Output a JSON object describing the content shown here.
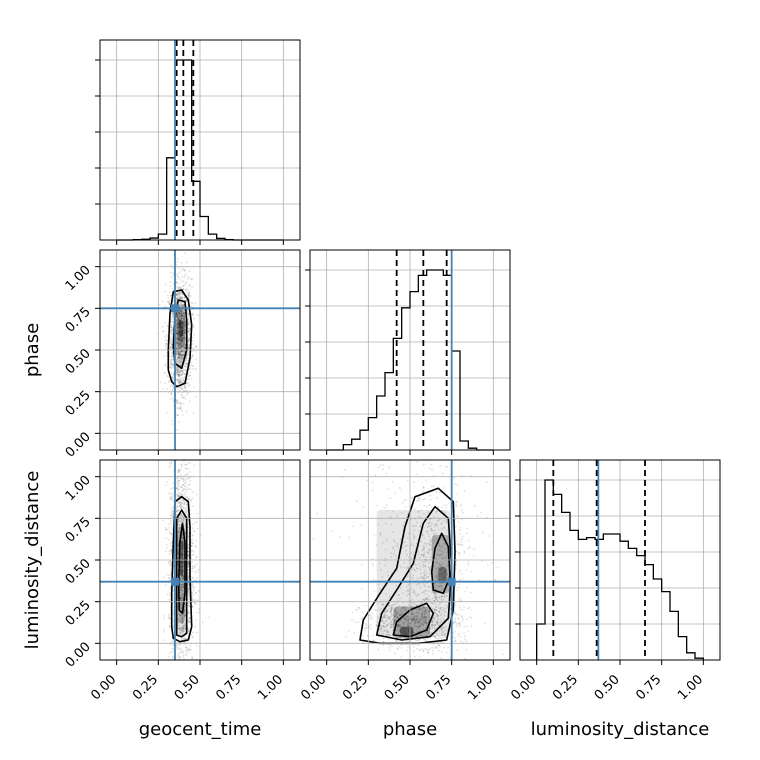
{
  "chart_data": {
    "type": "corner",
    "parameters": [
      "geocent_time",
      "phase",
      "luminosity_distance"
    ],
    "truths": {
      "geocent_time": 0.35,
      "phase": 0.75,
      "luminosity_distance": 0.37
    },
    "axis_range": [
      -0.1,
      1.1
    ],
    "tick_values": [
      0.0,
      0.25,
      0.5,
      0.75,
      1.0
    ],
    "tick_labels": [
      "0.00",
      "0.25",
      "0.50",
      "0.75",
      "1.00"
    ],
    "grid": true,
    "truth_color": "#4682b4",
    "marginals": [
      {
        "parameter": "geocent_time",
        "bin_edges": [
          0.0,
          0.05,
          0.1,
          0.15,
          0.2,
          0.25,
          0.3,
          0.35,
          0.4,
          0.45,
          0.5,
          0.55,
          0.6,
          0.65,
          0.7,
          0.75,
          0.8,
          0.85,
          0.9,
          0.95,
          1.0
        ],
        "density": [
          0.0,
          0.0,
          0.002,
          0.004,
          0.01,
          0.03,
          0.42,
          0.92,
          0.92,
          0.3,
          0.12,
          0.03,
          0.008,
          0.002,
          0.0,
          0.0,
          0.0,
          0.0,
          0.0,
          0.0
        ],
        "quantiles": [
          0.36,
          0.4,
          0.46
        ]
      },
      {
        "parameter": "phase",
        "bin_edges": [
          0.0,
          0.05,
          0.1,
          0.15,
          0.2,
          0.25,
          0.3,
          0.35,
          0.4,
          0.45,
          0.5,
          0.55,
          0.6,
          0.65,
          0.7,
          0.75,
          0.8,
          0.85,
          0.9,
          0.95,
          1.0
        ],
        "density": [
          0.0,
          0.0,
          0.03,
          0.06,
          0.11,
          0.18,
          0.3,
          0.43,
          0.62,
          0.79,
          0.88,
          0.97,
          1.0,
          1.0,
          0.97,
          0.55,
          0.05,
          0.01,
          0.0,
          0.0
        ],
        "quantiles": [
          0.42,
          0.58,
          0.72
        ]
      },
      {
        "parameter": "luminosity_distance",
        "bin_edges": [
          0.0,
          0.05,
          0.1,
          0.15,
          0.2,
          0.25,
          0.3,
          0.35,
          0.4,
          0.45,
          0.5,
          0.55,
          0.6,
          0.65,
          0.7,
          0.75,
          0.8,
          0.85,
          0.9,
          0.95,
          1.0
        ],
        "density": [
          0.2,
          1.0,
          0.92,
          0.82,
          0.72,
          0.67,
          0.68,
          0.67,
          0.7,
          0.7,
          0.66,
          0.62,
          0.58,
          0.53,
          0.45,
          0.38,
          0.27,
          0.13,
          0.04,
          0.01
        ],
        "quantiles": [
          0.1,
          0.36,
          0.65
        ]
      }
    ],
    "joint": [
      {
        "x": "geocent_time",
        "y": "phase",
        "spread": "narrow vertical band centred near x 0.38, y from about 0.3 to 0.85",
        "contour_levels": 2
      },
      {
        "x": "geocent_time",
        "y": "luminosity_distance",
        "spread": "narrow vertical band near x 0.39, y from about 0.02 to 0.87",
        "contour_levels": 3
      },
      {
        "x": "phase",
        "y": "luminosity_distance",
        "spread": "banana shaped region, densest near phase 0.45 distance 0.07 and phase 0.7 distance 0.4",
        "contour_levels": 3
      }
    ]
  }
}
